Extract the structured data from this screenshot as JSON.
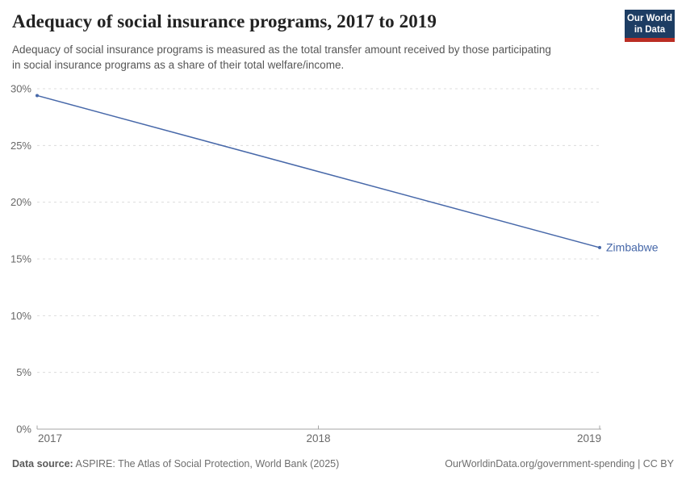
{
  "header": {
    "title": "Adequacy of social insurance programs, 2017 to 2019",
    "subtitle": "Adequacy of social insurance programs is measured as the total transfer amount received by those participating in social insurance programs as a share of their total welfare/income.",
    "logo": {
      "line1": "Our World",
      "line2": "in Data"
    }
  },
  "chart_data": {
    "type": "line",
    "title": "Adequacy of social insurance programs, 2017 to 2019",
    "xlabel": "",
    "ylabel": "",
    "xlim": [
      2017,
      2019
    ],
    "ylim": [
      0,
      30
    ],
    "grid": "horizontal dashed gridlines on",
    "legend": "entity label at end of line",
    "xticks": [
      {
        "value": 2017,
        "label": "2017"
      },
      {
        "value": 2018,
        "label": "2018"
      },
      {
        "value": 2019,
        "label": "2019"
      }
    ],
    "yticks": [
      {
        "value": 0,
        "label": "0%"
      },
      {
        "value": 5,
        "label": "5%"
      },
      {
        "value": 10,
        "label": "10%"
      },
      {
        "value": 15,
        "label": "15%"
      },
      {
        "value": 20,
        "label": "20%"
      },
      {
        "value": 25,
        "label": "25%"
      },
      {
        "value": 30,
        "label": "30%"
      }
    ],
    "series": [
      {
        "name": "Zimbabwe",
        "color": "#4768a9",
        "points": [
          {
            "x": 2017,
            "y": 29.4
          },
          {
            "x": 2019,
            "y": 16.0
          }
        ]
      }
    ]
  },
  "colors": {
    "line": "#4768a9",
    "gridline": "#dcdcdc",
    "axis": "#a5a5a5",
    "tick_text": "#696969",
    "logo_bg": "#1d3d63",
    "logo_accent": "#bb2e24"
  },
  "footer": {
    "data_source_label": "Data source:",
    "data_source_value": " ASPIRE: The Atlas of Social Protection, World Bank (2025)",
    "link_text": "OurWorldinData.org/government-spending | CC BY"
  }
}
